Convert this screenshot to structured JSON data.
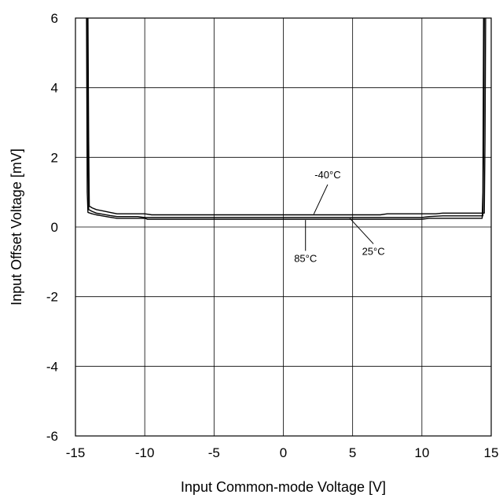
{
  "chart_data": {
    "type": "line",
    "title": "",
    "xlabel": "Input Common-mode Voltage [V]",
    "ylabel": "Input Offset Voltage [mV]",
    "xlim": [
      -15,
      15
    ],
    "ylim": [
      -6,
      6
    ],
    "x_ticks": [
      -15,
      -10,
      -5,
      0,
      5,
      10,
      15
    ],
    "y_ticks": [
      -6,
      -4,
      -2,
      0,
      2,
      4,
      6
    ],
    "x_tick_labels": [
      "-15",
      "-10",
      "-5",
      "0",
      "5",
      "10",
      "15"
    ],
    "y_tick_labels": [
      "-6",
      "-4",
      "-2",
      "0",
      "2",
      "4",
      "6"
    ],
    "grid": true,
    "line_color": "#000000",
    "series": [
      {
        "name": "-40°C",
        "x": [
          -14.1,
          -14.05,
          -14.0,
          -13.8,
          -13.5,
          -12.5,
          -12.0,
          -10.0,
          -9.5,
          0.0,
          7.0,
          7.5,
          11.0,
          11.5,
          14.5,
          14.55,
          14.6
        ],
        "y": [
          6.0,
          2.5,
          0.6,
          0.55,
          0.5,
          0.42,
          0.38,
          0.38,
          0.35,
          0.35,
          0.35,
          0.38,
          0.38,
          0.4,
          0.4,
          2.5,
          6.0
        ]
      },
      {
        "name": "25°C",
        "x": [
          -14.15,
          -14.1,
          -14.05,
          -13.8,
          -13.5,
          -12.5,
          -12.0,
          -10.5,
          -10.0,
          0.0,
          10.0,
          10.5,
          11.5,
          14.4,
          14.45,
          14.5
        ],
        "y": [
          6.0,
          2.0,
          0.5,
          0.45,
          0.4,
          0.33,
          0.3,
          0.3,
          0.27,
          0.27,
          0.27,
          0.3,
          0.32,
          0.32,
          2.0,
          6.0
        ]
      },
      {
        "name": "85°C",
        "x": [
          -14.2,
          -14.15,
          -14.1,
          -13.8,
          -13.5,
          -12.5,
          -12.0,
          -10.0,
          -9.8,
          0.0,
          10.0,
          10.5,
          14.35,
          14.4,
          14.45
        ],
        "y": [
          6.0,
          1.0,
          0.42,
          0.38,
          0.35,
          0.28,
          0.25,
          0.25,
          0.22,
          0.22,
          0.22,
          0.25,
          0.25,
          1.0,
          6.0
        ]
      }
    ],
    "annotations": [
      {
        "text": "-40°C",
        "series": 0,
        "label_x": 3.2,
        "label_y": 1.4,
        "point_x": 2.2,
        "point_y": 0.37
      },
      {
        "text": "85°C",
        "series": 2,
        "label_x": 1.6,
        "label_y": -1.0,
        "point_x": 1.6,
        "point_y": 0.2
      },
      {
        "text": "25°C",
        "series": 1,
        "label_x": 6.5,
        "label_y": -0.8,
        "point_x": 4.8,
        "point_y": 0.25
      }
    ]
  }
}
